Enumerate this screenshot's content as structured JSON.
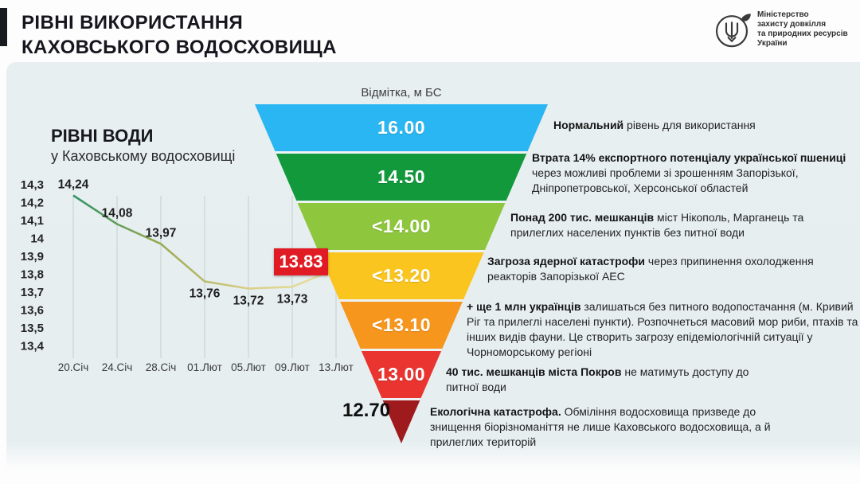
{
  "header": {
    "title_line1": "РІВНІ ВИКОРИСТАННЯ",
    "title_line2": "КАХОВСЬКОГО ВОДОСХОВИЩА"
  },
  "ministry": {
    "lines": [
      "Міністерство",
      "захисту довкілля",
      "та природних ресурсів",
      "України"
    ],
    "emblem": "trident-leaf-icon"
  },
  "chart_data": [
    {
      "type": "line",
      "title": "РІВНІ ВОДИ",
      "subtitle": "у Каховському водосховищі",
      "x": [
        "20.Січ",
        "24.Січ",
        "28.Січ",
        "01.Лют",
        "05.Лют",
        "09.Лют",
        "13.Лют"
      ],
      "values": [
        14.24,
        14.08,
        13.97,
        13.76,
        13.72,
        13.73,
        13.83
      ],
      "point_labels": [
        "14,24",
        "14,08",
        "13,97",
        "13,76",
        "13,72",
        "13,73",
        "13.83"
      ],
      "label_pos": [
        "above",
        "above",
        "above",
        "below",
        "below",
        "below",
        "box"
      ],
      "highlight_index": 6,
      "highlight_color": "#e11b23",
      "ylim": [
        13.4,
        14.3
      ],
      "y_ticks": [
        "14,3",
        "14,2",
        "14,1",
        "14",
        "13,9",
        "13,8",
        "13,7",
        "13,6",
        "13,5",
        "13,4"
      ],
      "grid": "vertical-only",
      "grid_color": "#ccd6d8",
      "line_gradient": [
        "#2f9468",
        "#9aa94f",
        "#d9cf87",
        "#e9e3a4"
      ]
    },
    {
      "type": "funnel",
      "axis_label": "Відмітка, м БС",
      "levels": [
        {
          "value": "16.00",
          "color": "#29b6f2",
          "desc_bold": "Нормальний",
          "desc_rest": " рівень для використання"
        },
        {
          "value": "14.50",
          "color": "#12993c",
          "desc_bold": "Втрата 14% експортного потенціалу української пшениці",
          "desc_rest": " через можливі проблеми зі зрошенням Запорізької, Дніпропетровської, Херсонської областей"
        },
        {
          "value": "<14.00",
          "color": "#8ec73e",
          "desc_bold": "Понад 200 тис. мешканців",
          "desc_rest": " міст Нікополь, Марганець та прилеглих населених пунктів без питної води"
        },
        {
          "value": "<13.20",
          "color": "#fbc51f",
          "desc_bold": "Загроза ядерної катастрофи",
          "desc_rest": " через припинення охолодження реакторів Запорізької АЕС"
        },
        {
          "value": "<13.10",
          "color": "#f6961d",
          "desc_bold": "+ ще 1 млн українців",
          "desc_rest": " залишаться без питного водопостачання (м. Кривий Ріг та прилеглі населені пункти). Розпочнеться масовий мор риби, птахів та інших видів фауни. Це створить загрозу епідеміологічній ситуації у Чорноморському регіоні"
        },
        {
          "value": "13.00",
          "color": "#e93430",
          "desc_bold": "40 тис. мешканців міста Покров",
          "desc_rest": " не матимуть доступу до питної води"
        },
        {
          "value": "12.70",
          "color": "#9f1a1d",
          "desc_bold": "Екологічна катастрофа.",
          "desc_rest": " Обміління водосховища призведе до знищення біорізноманіття не лише Каховського водосховища, а й прилеглих територій"
        }
      ]
    }
  ]
}
